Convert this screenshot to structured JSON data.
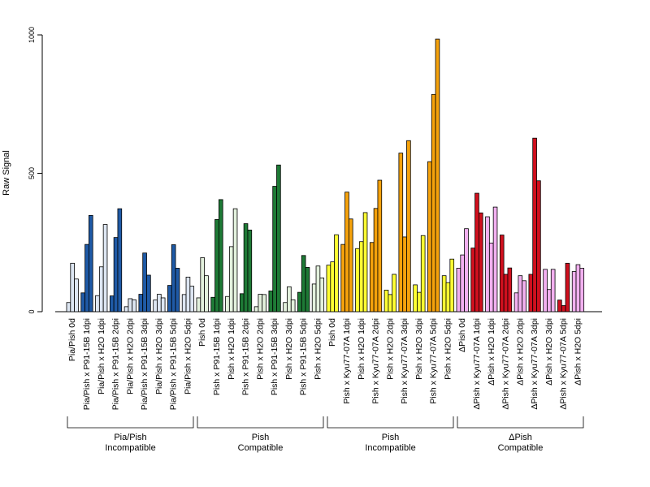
{
  "chart_data": {
    "type": "bar",
    "ylabel": "Raw Signal",
    "ylim": [
      0,
      1000
    ],
    "yticks": [
      0,
      500,
      1000
    ],
    "xlabel": "",
    "title": "",
    "groups": [
      {
        "label_line1": "Pia/Pish",
        "label_line2": "Incompatible",
        "light_color": "#dde6f2",
        "dark_color": "#1f5aa6",
        "categories": [
          {
            "label": "Pia/Pish 0d",
            "values": [
              33,
              175,
              118
            ]
          },
          {
            "label": "Pia/Pish x P91-15B 1dpi",
            "values": [
              68,
              243,
              348
            ]
          },
          {
            "label": "Pia/Pish x H2O 1dpi",
            "values": [
              58,
              162,
              315
            ]
          },
          {
            "label": "Pia/Pish x P91-15B 2dpi",
            "values": [
              57,
              268,
              372
            ]
          },
          {
            "label": "Pia/Pish x H2O 2dpi",
            "values": [
              18,
              47,
              43
            ]
          },
          {
            "label": "Pia/Pish x P91-15B 3dpi",
            "values": [
              63,
              212,
              132
            ]
          },
          {
            "label": "Pia/Pish x H2O 3dpi",
            "values": [
              42,
              63,
              50
            ]
          },
          {
            "label": "Pia/Pish x P91-15B 5dpi",
            "values": [
              95,
              242,
              157
            ]
          },
          {
            "label": "Pia/Pish x H2O 5dpi",
            "values": [
              62,
              125,
              92
            ]
          }
        ]
      },
      {
        "label_line1": "Pish",
        "label_line2": "Compatible",
        "light_color": "#e3f1dd",
        "dark_color": "#1e7a36",
        "categories": [
          {
            "label": "Pish 0d",
            "values": [
              50,
              195,
              130
            ]
          },
          {
            "label": "Pish x P91-15B 1dpi",
            "values": [
              52,
              333,
              405
            ]
          },
          {
            "label": "Pish x H2O 1dpi",
            "values": [
              55,
              235,
              372
            ]
          },
          {
            "label": "Pish x P91-15B 2dpi",
            "values": [
              65,
              318,
              295
            ]
          },
          {
            "label": "Pish x H2O 2dpi",
            "values": [
              18,
              63,
              62
            ]
          },
          {
            "label": "Pish x P91-15B 3dpi",
            "values": [
              75,
              453,
              530
            ]
          },
          {
            "label": "Pish x H2O 3dpi",
            "values": [
              33,
              90,
              43
            ]
          },
          {
            "label": "Pish x P91-15B 5dpi",
            "values": [
              70,
              203,
              160
            ]
          },
          {
            "label": "Pish x H2O 5dpi",
            "values": [
              100,
              165,
              122
            ]
          }
        ]
      },
      {
        "label_line1": "Pish",
        "label_line2": "Incompatible",
        "light_color": "#ffff33",
        "dark_color": "#f5a20c",
        "categories": [
          {
            "label": "Pish 0d",
            "values": [
              168,
              180,
              278
            ],
            "color": "light"
          },
          {
            "label": "Pish x Kyu77-07A 1dpi",
            "values": [
              243,
              432,
              335
            ]
          },
          {
            "label": "Pish x H2O 1dpi",
            "values": [
              228,
              253,
              358
            ]
          },
          {
            "label": "Pish x Kyu77-07A 2dpi",
            "values": [
              250,
              373,
              475
            ]
          },
          {
            "label": "Pish x H2O 2dpi",
            "values": [
              78,
              62,
              135
            ]
          },
          {
            "label": "Pish x Kyu77-07A 3dpi",
            "values": [
              573,
              270,
              618
            ]
          },
          {
            "label": "Pish x H2O 3dpi",
            "values": [
              97,
              70,
              275
            ]
          },
          {
            "label": "Pish x Kyu77-07A 5dpi",
            "values": [
              542,
              785,
              985
            ]
          },
          {
            "label": "Pish x H2O 5dpi",
            "values": [
              130,
              105,
              190
            ]
          }
        ]
      },
      {
        "label_line1": "ΔPish",
        "label_line2": "Compatible",
        "light_color": "#f2b0f0",
        "dark_color": "#d0101e",
        "categories": [
          {
            "label": "ΔPish 0d",
            "values": [
              157,
              205,
              300
            ],
            "color": "light"
          },
          {
            "label": "ΔPish x Kyu77-07A 1dpi",
            "values": [
              230,
              428,
              357
            ]
          },
          {
            "label": "ΔPish x H2O 1dpi",
            "values": [
              343,
              248,
              378
            ]
          },
          {
            "label": "ΔPish x Kyu77-07A 2dpi",
            "values": [
              277,
              135,
              158
            ]
          },
          {
            "label": "ΔPish x H2O 2dpi",
            "values": [
              68,
              130,
              112
            ]
          },
          {
            "label": "ΔPish x Kyu77-07A 3dpi",
            "values": [
              135,
              627,
              473
            ]
          },
          {
            "label": "ΔPish x H2O 3dpi",
            "values": [
              153,
              80,
              153
            ]
          },
          {
            "label": "ΔPish x Kyu77-07A 5dpi",
            "values": [
              42,
              22,
              175
            ]
          },
          {
            "label": "ΔPish x H2O 5dpi",
            "values": [
              145,
              170,
              157
            ]
          }
        ]
      }
    ]
  }
}
